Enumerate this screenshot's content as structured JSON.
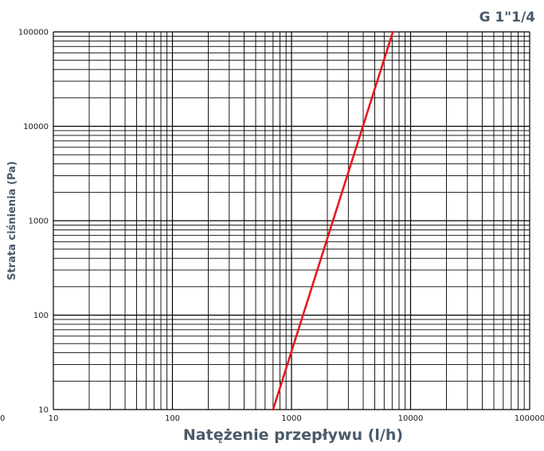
{
  "chart_data": {
    "type": "line",
    "title": "G 1\"1/4",
    "xlabel": "Natężenie przepływu (l/h)",
    "ylabel": "Strata ciśnienia (Pa)",
    "x_scale": "log",
    "y_scale": "log",
    "xlim": [
      10,
      100000
    ],
    "ylim": [
      10,
      100000
    ],
    "x_ticks": [
      "10",
      "100",
      "1000",
      "10000",
      "100000"
    ],
    "y_ticks": [
      "10",
      "100",
      "1000",
      "10000",
      "100000"
    ],
    "left_edge_label": "0",
    "grid": true,
    "legend": "none",
    "series": [
      {
        "color": "#e8171f",
        "x": [
          700,
          7100
        ],
        "y": [
          10,
          100000
        ]
      }
    ]
  },
  "colors": {
    "axis_text": "#4a5a6a",
    "grid": "#000000",
    "series": "#e8171f"
  }
}
